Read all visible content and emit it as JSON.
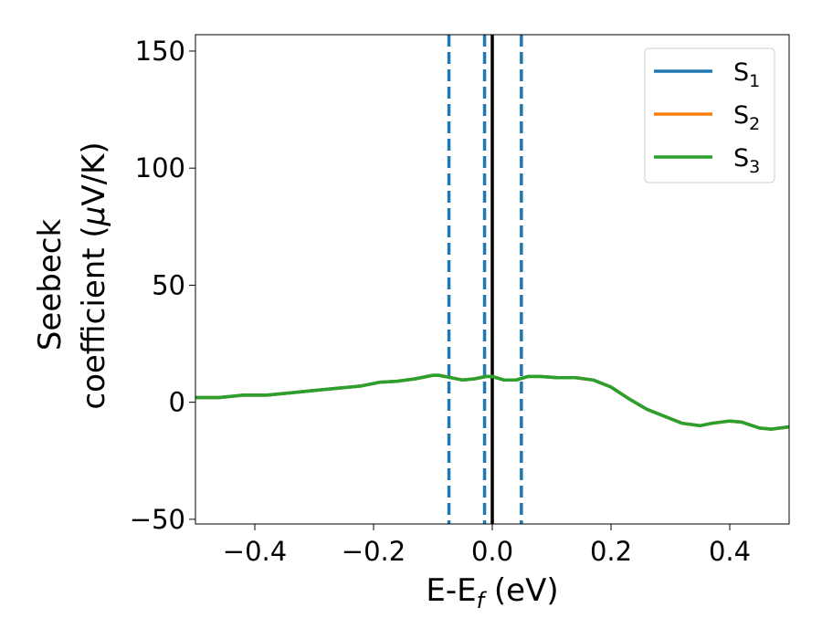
{
  "chart_data": {
    "type": "line",
    "title": "",
    "xlabel": "E-E",
    "xlabel_sub": "f",
    "xlabel_unit": " (eV)",
    "ylabel_line1": "Seebeck",
    "ylabel_line2": "coefficient  (",
    "ylabel_mu": "μ",
    "ylabel_unit": "V/K)",
    "xlim": [
      -0.5,
      0.5
    ],
    "ylim": [
      -52,
      157
    ],
    "xticks": [
      -0.4,
      -0.2,
      0.0,
      0.2,
      0.4
    ],
    "xtick_labels": [
      "−0.4",
      "−0.2",
      "0.0",
      "0.2",
      "0.4"
    ],
    "yticks": [
      -50,
      0,
      50,
      100,
      150
    ],
    "ytick_labels": [
      "−50",
      "0",
      "50",
      "100",
      "150"
    ],
    "grid": false,
    "legend_position": "upper-right",
    "x": [
      -0.5,
      -0.46,
      -0.42,
      -0.38,
      -0.34,
      -0.3,
      -0.26,
      -0.22,
      -0.19,
      -0.16,
      -0.13,
      -0.1,
      -0.09,
      -0.07,
      -0.05,
      -0.03,
      -0.01,
      0.0,
      0.02,
      0.04,
      0.06,
      0.08,
      0.11,
      0.14,
      0.17,
      0.2,
      0.23,
      0.26,
      0.29,
      0.32,
      0.35,
      0.37,
      0.4,
      0.42,
      0.45,
      0.47,
      0.5
    ],
    "series": [
      {
        "name": "S",
        "sub": "1",
        "color": "#1f77b4",
        "values": [
          2,
          2,
          3,
          3,
          4,
          5,
          6,
          7,
          8.5,
          9,
          10,
          11.5,
          11.5,
          10.5,
          9.5,
          10,
          11,
          11,
          9.5,
          9.5,
          11,
          11,
          10.5,
          10.5,
          9.5,
          6.5,
          1.5,
          -3,
          -6,
          -9,
          -10,
          -9,
          -8,
          -8.5,
          -11,
          -11.5,
          -10.5
        ]
      },
      {
        "name": "S",
        "sub": "2",
        "color": "#ff7f0e",
        "values": [
          2,
          2,
          3,
          3,
          4,
          5,
          6,
          7,
          8.5,
          9,
          10,
          11.5,
          11.5,
          10.5,
          9.5,
          10,
          11,
          11,
          9.5,
          9.5,
          11,
          11,
          10.5,
          10.5,
          9.5,
          6.5,
          1.5,
          -3,
          -6,
          -9,
          -10,
          -9,
          -8,
          -8.5,
          -11,
          -11.5,
          -10.5
        ]
      },
      {
        "name": "S",
        "sub": "3",
        "color": "#2ca02c",
        "values": [
          2,
          2,
          3,
          3,
          4,
          5,
          6,
          7,
          8.5,
          9,
          10,
          11.5,
          11.5,
          10.5,
          9.5,
          10,
          11,
          11,
          9.5,
          9.5,
          11,
          11,
          10.5,
          10.5,
          9.5,
          6.5,
          1.5,
          -3,
          -6,
          -9,
          -10,
          -9,
          -8,
          -8.5,
          -11,
          -11.5,
          -10.5
        ]
      }
    ],
    "vlines": [
      {
        "x": -0.073,
        "style": "dashed",
        "color": "#1f77b4"
      },
      {
        "x": -0.013,
        "style": "dashed",
        "color": "#1f77b4"
      },
      {
        "x": 0.0,
        "style": "solid",
        "color": "#000000"
      },
      {
        "x": 0.049,
        "style": "dashed",
        "color": "#1f77b4"
      }
    ]
  }
}
